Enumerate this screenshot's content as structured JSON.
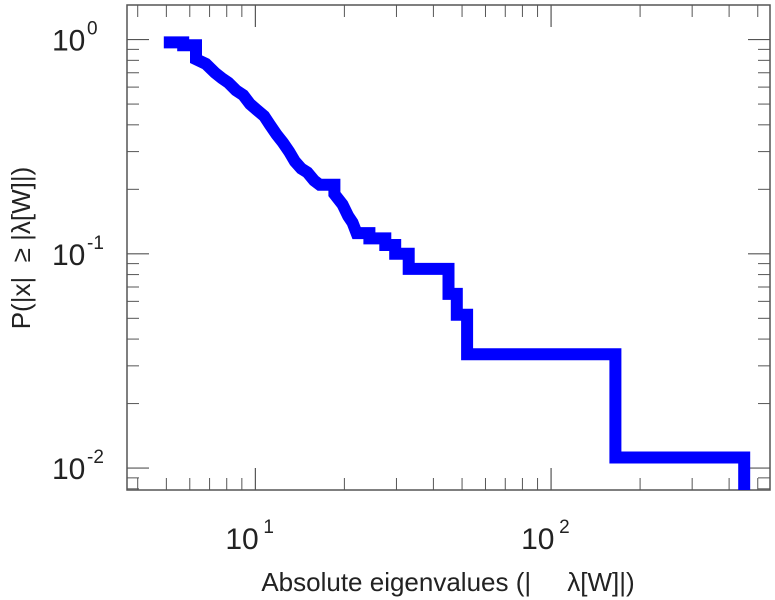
{
  "chart_data": {
    "type": "line",
    "title": "",
    "xlabel": "Absolute eigenvalues (|     λ[W]|)",
    "ylabel": "P(|x|  ≥ |λ[W]|)",
    "xscale": "log",
    "yscale": "log",
    "xlim": [
      3.68,
      550
    ],
    "ylim": [
      0.0079,
      1.45
    ],
    "grid": false,
    "legend": "none",
    "x_ticks": [
      {
        "value": 10,
        "base": "10",
        "exp": "1"
      },
      {
        "value": 100,
        "base": "10",
        "exp": "2"
      }
    ],
    "y_ticks": [
      {
        "value": 1,
        "base": "10",
        "exp": "0"
      },
      {
        "value": 0.1,
        "base": "10",
        "exp": "-1"
      },
      {
        "value": 0.01,
        "base": "10",
        "exp": "-2"
      }
    ],
    "series": [
      {
        "color": "#0000ff",
        "style": "step",
        "points": [
          [
            4.9,
            0.97
          ],
          [
            5.7,
            0.97
          ],
          [
            5.7,
            0.94
          ],
          [
            6.3,
            0.94
          ],
          [
            6.3,
            0.81
          ],
          [
            6.8,
            0.77
          ],
          [
            7.3,
            0.7
          ],
          [
            7.7,
            0.66
          ],
          [
            8.1,
            0.63
          ],
          [
            8.6,
            0.58
          ],
          [
            9.1,
            0.55
          ],
          [
            9.6,
            0.5
          ],
          [
            10.1,
            0.47
          ],
          [
            10.7,
            0.44
          ],
          [
            11.2,
            0.4
          ],
          [
            11.8,
            0.36
          ],
          [
            12.4,
            0.33
          ],
          [
            13.0,
            0.3
          ],
          [
            13.6,
            0.27
          ],
          [
            14.3,
            0.25
          ],
          [
            15.0,
            0.24
          ],
          [
            15.8,
            0.22
          ],
          [
            16.5,
            0.21
          ],
          [
            18.5,
            0.21
          ],
          [
            18.5,
            0.19
          ],
          [
            19.7,
            0.17
          ],
          [
            20.6,
            0.15
          ],
          [
            21.3,
            0.14
          ],
          [
            22.0,
            0.125
          ],
          [
            24.3,
            0.125
          ],
          [
            24.3,
            0.118
          ],
          [
            27.5,
            0.118
          ],
          [
            27.5,
            0.11
          ],
          [
            29.7,
            0.11
          ],
          [
            29.7,
            0.1
          ],
          [
            33.0,
            0.1
          ],
          [
            33.0,
            0.085
          ],
          [
            45.0,
            0.085
          ],
          [
            45.0,
            0.065
          ],
          [
            48.0,
            0.065
          ],
          [
            48.0,
            0.052
          ],
          [
            52.0,
            0.052
          ],
          [
            52.0,
            0.034
          ],
          [
            165,
            0.034
          ],
          [
            165,
            0.0112
          ],
          [
            450,
            0.0112
          ],
          [
            450,
            0.0079
          ]
        ]
      }
    ]
  }
}
